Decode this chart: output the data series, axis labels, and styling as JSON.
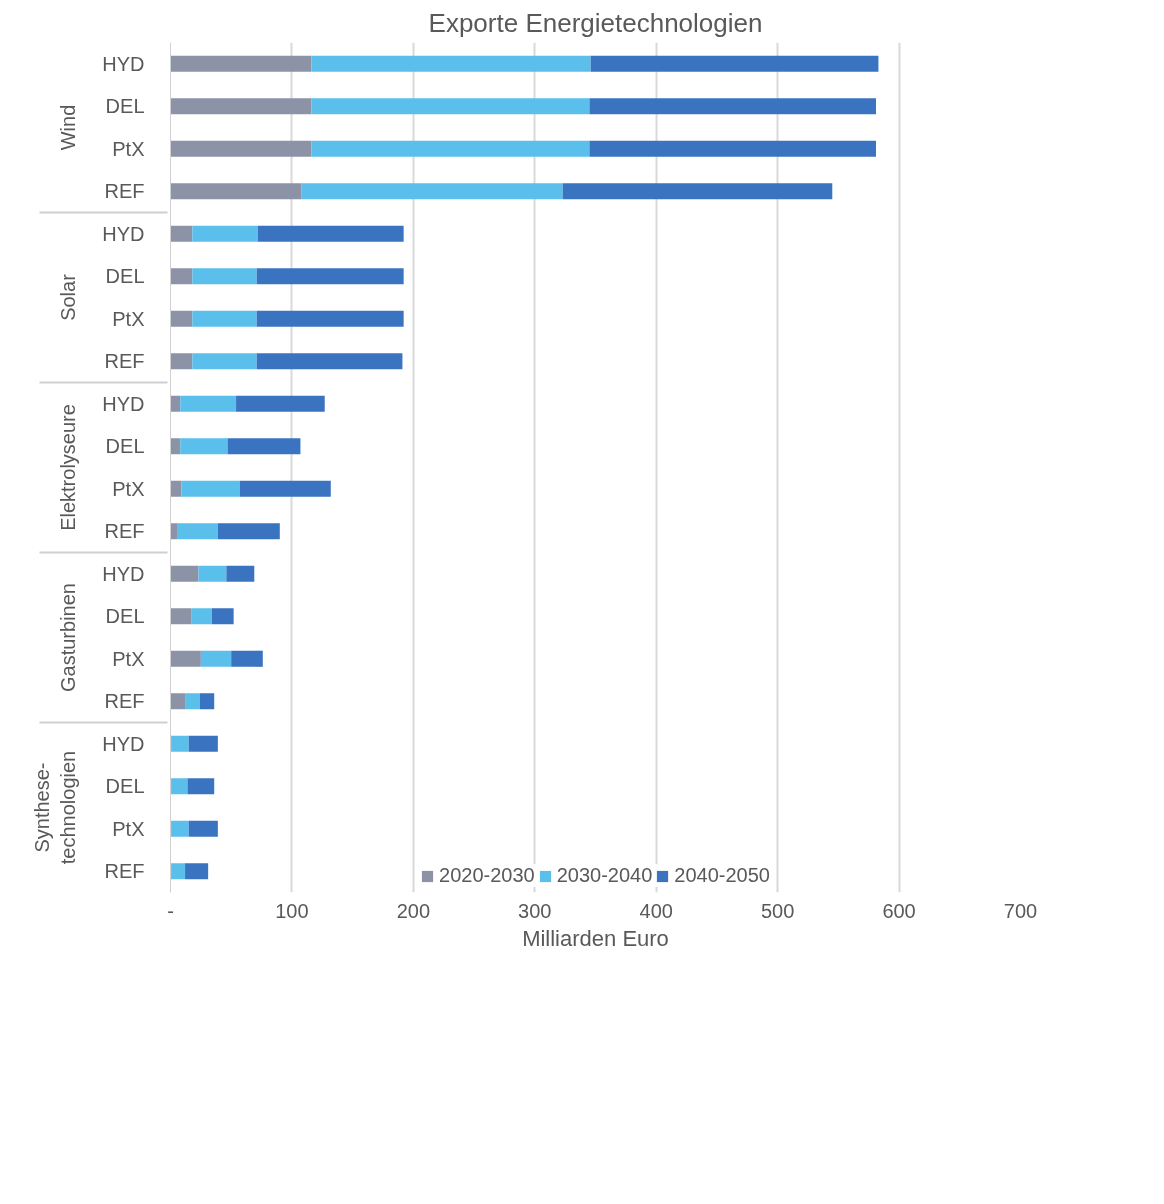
{
  "chart_data": {
    "type": "bar",
    "orientation": "horizontal",
    "stacked": true,
    "title": "Exporte Energietechnologien",
    "xlabel": "Milliarden Euro",
    "categories": [
      "HYD",
      "DEL",
      "PtX",
      "REF",
      "HYD",
      "DEL",
      "PtX",
      "REF",
      "HYD",
      "DEL",
      "PtX",
      "REF",
      "HYD",
      "DEL",
      "PtX",
      "REF",
      "HYD",
      "DEL",
      "PtX",
      "REF"
    ],
    "annotations": [
      "Wind",
      "Solar",
      "Elektrolyseure",
      "Gasturbinen",
      "Synthese-\ntechnologien"
    ],
    "series": [
      {
        "name": "2020-2030",
        "color": "#8c93a6",
        "values": [
          116,
          116,
          116,
          108,
          18,
          18,
          18,
          18,
          8,
          8,
          9,
          6,
          23,
          17,
          25,
          12,
          1,
          1,
          1,
          1
        ]
      },
      {
        "name": "2030-2040",
        "color": "#5bbfec",
        "values": [
          230,
          229,
          229,
          215,
          54,
          53,
          53,
          53,
          46,
          39,
          48,
          33,
          23,
          17,
          25,
          12,
          14,
          13,
          14,
          11
        ]
      },
      {
        "name": "2040-2050",
        "color": "#3a73bf",
        "values": [
          237,
          236,
          236,
          222,
          120,
          121,
          121,
          120,
          73,
          60,
          75,
          51,
          23,
          18,
          26,
          12,
          24,
          22,
          24,
          19
        ]
      }
    ],
    "xlim": [
      0,
      700
    ],
    "xticks": [
      {
        "value": 0,
        "label": "-"
      },
      100,
      200,
      300,
      400,
      500,
      600,
      700
    ],
    "grid": "x",
    "legend": "bottom"
  }
}
